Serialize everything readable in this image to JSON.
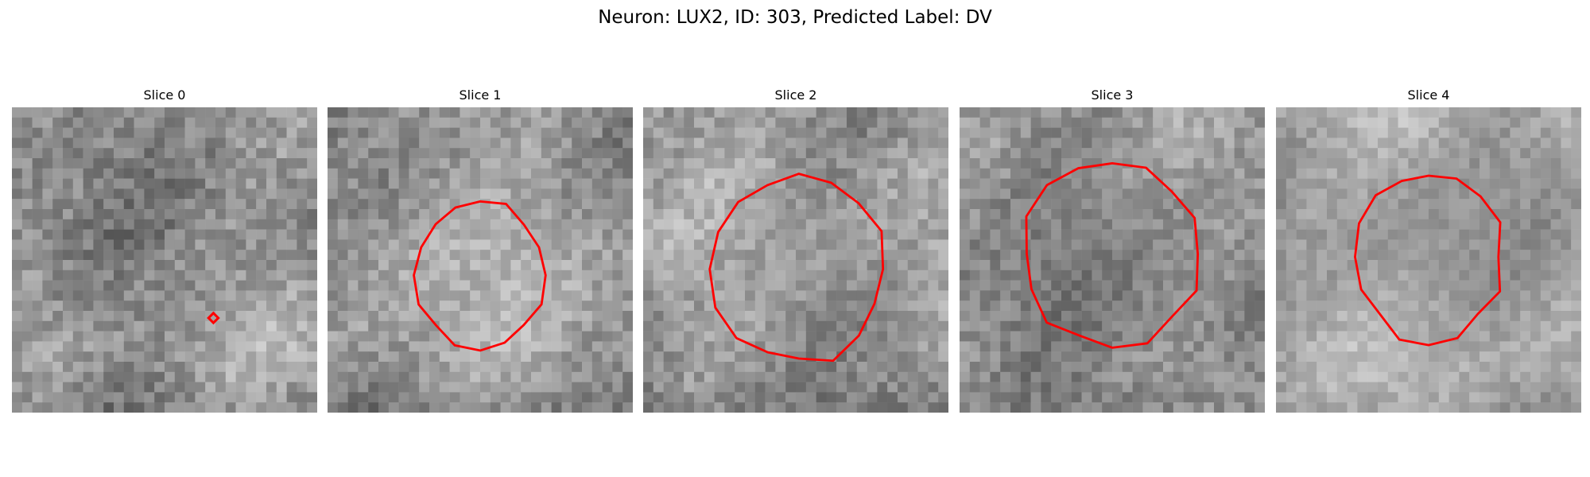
{
  "figure": {
    "title": "Neuron: LUX2, ID: 303, Predicted Label: DV"
  },
  "colors": {
    "contour": "#ff0000",
    "background": "#ffffff"
  },
  "slices": [
    {
      "title": "Slice 0",
      "seed": 11,
      "base": 0.56,
      "noise": 0.23,
      "dark_level": 0.48,
      "dark_amount": 0.16,
      "dark_radius": 0.16,
      "dark_center": [
        0.79,
        0.75
      ],
      "contour_kind": "marker",
      "contour_center": [
        0.66,
        0.69
      ]
    },
    {
      "title": "Slice 1",
      "seed": 23,
      "base": 0.61,
      "noise": 0.22,
      "dark_level": 0.48,
      "dark_amount": 0.2,
      "dark_radius": 0.26,
      "dark_center": [
        0.52,
        0.55
      ],
      "contour_kind": "polygon",
      "contour_center": [
        0.5,
        0.55
      ],
      "contour_radius": [
        0.42,
        0.48
      ]
    },
    {
      "title": "Slice 2",
      "seed": 37,
      "base": 0.6,
      "noise": 0.22,
      "dark_level": 0.42,
      "dark_amount": 0.22,
      "dark_radius": 0.28,
      "dark_center": [
        0.52,
        0.53
      ],
      "contour_kind": "polygon",
      "contour_center": [
        0.51,
        0.53
      ],
      "contour_radius": [
        0.56,
        0.62
      ]
    },
    {
      "title": "Slice 3",
      "seed": 51,
      "base": 0.57,
      "noise": 0.22,
      "dark_level": 0.37,
      "dark_amount": 0.27,
      "dark_radius": 0.31,
      "dark_center": [
        0.5,
        0.48
      ],
      "contour_kind": "polygon",
      "contour_center": [
        0.5,
        0.48
      ],
      "contour_radius": [
        0.58,
        0.61
      ]
    },
    {
      "title": "Slice 4",
      "seed": 67,
      "base": 0.68,
      "noise": 0.16,
      "dark_level": 0.35,
      "dark_amount": 0.3,
      "dark_radius": 0.25,
      "dark_center": [
        0.51,
        0.49
      ],
      "contour_kind": "polygon",
      "contour_center": [
        0.5,
        0.49
      ],
      "contour_radius": [
        0.48,
        0.56
      ]
    }
  ]
}
